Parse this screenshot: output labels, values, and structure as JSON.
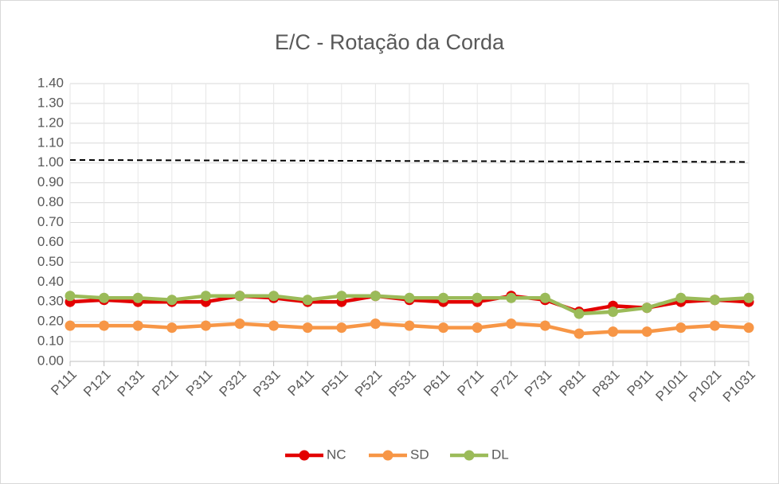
{
  "chart_data": {
    "type": "line",
    "title": "E/C - Rotação da Corda",
    "categories": [
      "P111",
      "P121",
      "P131",
      "P211",
      "P311",
      "P321",
      "P331",
      "P411",
      "P511",
      "P521",
      "P531",
      "P611",
      "P711",
      "P721",
      "P731",
      "P811",
      "P831",
      "P911",
      "P1011",
      "P1021",
      "P1031"
    ],
    "series": [
      {
        "name": "NC",
        "color": "#e30000",
        "values": [
          0.3,
          0.31,
          0.3,
          0.3,
          0.3,
          0.33,
          0.32,
          0.3,
          0.3,
          0.33,
          0.31,
          0.3,
          0.3,
          0.33,
          0.31,
          0.25,
          0.28,
          0.27,
          0.3,
          0.31,
          0.3
        ]
      },
      {
        "name": "SD",
        "color": "#f79646",
        "values": [
          0.18,
          0.18,
          0.18,
          0.17,
          0.18,
          0.19,
          0.18,
          0.17,
          0.17,
          0.19,
          0.18,
          0.17,
          0.17,
          0.19,
          0.18,
          0.14,
          0.15,
          0.15,
          0.17,
          0.18,
          0.17
        ]
      },
      {
        "name": "DL",
        "color": "#9bbb59",
        "values": [
          0.33,
          0.32,
          0.32,
          0.31,
          0.33,
          0.33,
          0.33,
          0.31,
          0.33,
          0.33,
          0.32,
          0.32,
          0.32,
          0.32,
          0.32,
          0.24,
          0.25,
          0.27,
          0.32,
          0.31,
          0.32
        ]
      }
    ],
    "dashed_line": {
      "color": "#000000",
      "values": [
        1.015,
        1.005
      ]
    },
    "ylim": [
      0,
      1.4
    ],
    "yticks": [
      {
        "value": 0,
        "label": "0.00"
      },
      {
        "value": 0.1,
        "label": "0.10"
      },
      {
        "value": 0.2,
        "label": "0.20"
      },
      {
        "value": 0.3,
        "label": "0.30"
      },
      {
        "value": 0.4,
        "label": "0.40"
      },
      {
        "value": 0.5,
        "label": "0.50"
      },
      {
        "value": 0.6,
        "label": "0.60"
      },
      {
        "value": 0.7,
        "label": "0.70"
      },
      {
        "value": 0.8,
        "label": "0.80"
      },
      {
        "value": 0.9,
        "label": "0.90"
      },
      {
        "value": 1,
        "label": "1.00"
      },
      {
        "value": 1.1,
        "label": "1.10"
      },
      {
        "value": 1.2,
        "label": "1.20"
      },
      {
        "value": 1.3,
        "label": "1.30"
      },
      {
        "value": 1.4,
        "label": "1.40"
      }
    ],
    "grid": true,
    "legend": "bottom"
  }
}
